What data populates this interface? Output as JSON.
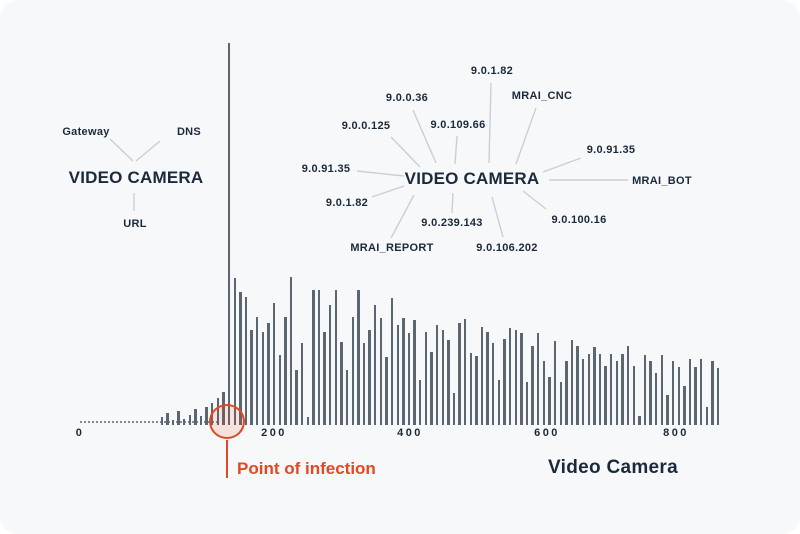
{
  "colors": {
    "background": "#f7f8fa",
    "bar": "#5b6670",
    "text_navy": "#1b2a3a",
    "accent_red": "#e5471f",
    "connector_gray": "#c8cfd7",
    "circle_fill": "rgba(229,71,31,0.13)"
  },
  "left_diagram": {
    "center": "VIDEO CAMERA",
    "satellites": [
      {
        "label": "Gateway"
      },
      {
        "label": "DNS"
      },
      {
        "label": "URL"
      }
    ]
  },
  "right_diagram": {
    "center": "VIDEO CAMERA",
    "satellites": [
      {
        "label": "9.0.1.82"
      },
      {
        "label": "MRAI_CNC"
      },
      {
        "label": "9.0.0.36"
      },
      {
        "label": "9.0.0.125"
      },
      {
        "label": "9.0.109.66"
      },
      {
        "label": "9.0.91.35"
      },
      {
        "label": "9.0.91.35"
      },
      {
        "label": "MRAI_BOT"
      },
      {
        "label": "9.0.1.82"
      },
      {
        "label": "9.0.100.16"
      },
      {
        "label": "9.0.239.143"
      },
      {
        "label": "MRAI_REPORT"
      },
      {
        "label": "9.0.106.202"
      }
    ]
  },
  "chart_data": {
    "type": "bar",
    "title": "",
    "xlabel": "Video Camera",
    "ylabel": "",
    "x_ticks": [
      "0",
      "200",
      "400",
      "600",
      "800"
    ],
    "x_tick_values": [
      0,
      200,
      400,
      600,
      800
    ],
    "grid": false,
    "legend": false,
    "annotation": {
      "label": "Point of infection",
      "marker": "red circle around bar cluster at base of tallest spike"
    },
    "spike_index": 12,
    "ylim": [
      0,
      382
    ],
    "value_unit": "bar height in screen px (no y-axis labels shown)",
    "values": [
      8,
      12,
      5,
      14,
      6,
      10,
      16,
      9,
      18,
      22,
      27,
      33,
      382,
      147,
      133,
      128,
      95,
      108,
      93,
      102,
      122,
      70,
      108,
      148,
      55,
      82,
      8,
      135,
      135,
      93,
      120,
      135,
      83,
      55,
      108,
      135,
      82,
      95,
      120,
      107,
      68,
      127,
      100,
      107,
      92,
      105,
      45,
      93,
      73,
      100,
      95,
      85,
      32,
      102,
      106,
      72,
      69,
      98,
      93,
      82,
      45,
      86,
      97,
      95,
      92,
      43,
      79,
      92,
      64,
      48,
      84,
      43,
      64,
      85,
      79,
      66,
      71,
      78,
      71,
      59,
      71,
      64,
      71,
      79,
      59,
      9,
      70,
      64,
      52,
      70,
      30,
      64,
      58,
      39,
      66,
      58,
      66,
      18,
      64,
      57
    ]
  },
  "footer": {
    "point_of_infection": "Point of infection",
    "axis_caption": "Video Camera"
  }
}
